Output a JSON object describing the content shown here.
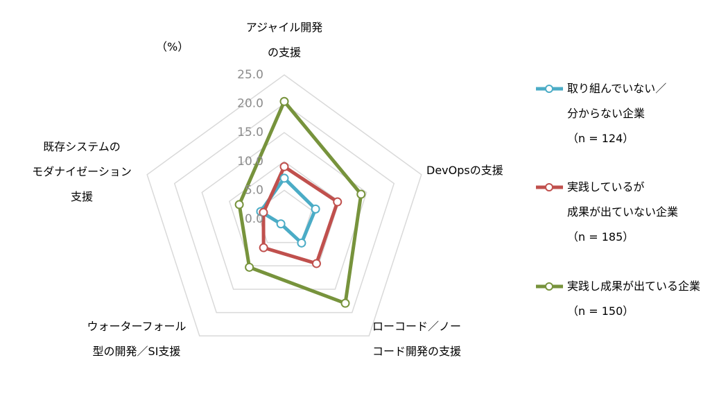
{
  "chart_data": {
    "type": "radar",
    "unit_label": "（%）",
    "categories": [
      "アジャイル開発\nの支援",
      "DevOpsの支援",
      "ローコード／ノー\nコード開発の支援",
      "ウォーターフォール\n型の開発／SI支援",
      "既存システムの\nモダナイゼーション\n支援"
    ],
    "ylim": [
      0,
      25
    ],
    "yticks": [
      {
        "value": 0,
        "label": "0.0"
      },
      {
        "value": 5,
        "label": "5.0"
      },
      {
        "value": 10,
        "label": "10.0"
      },
      {
        "value": 15,
        "label": "15.0"
      },
      {
        "value": 20,
        "label": "20.0"
      },
      {
        "value": 25,
        "label": "25.0"
      }
    ],
    "grid": true,
    "legend": "right",
    "series": [
      {
        "name": "取り組んでいない／\n分からない企業\n（n = 124）",
        "color": "#4bacc6",
        "values": [
          7.1,
          5.7,
          5.1,
          1.0,
          4.3
        ]
      },
      {
        "name": "実践しているが\n成果が出ていない企業\n（n = 185）",
        "color": "#c0504d",
        "values": [
          9.1,
          9.7,
          9.5,
          6.1,
          3.8
        ]
      },
      {
        "name": "実践し成果が出ている企業\n（n = 150）",
        "color": "#77933c",
        "values": [
          20.4,
          14.0,
          18.0,
          10.3,
          8.2
        ]
      }
    ]
  }
}
